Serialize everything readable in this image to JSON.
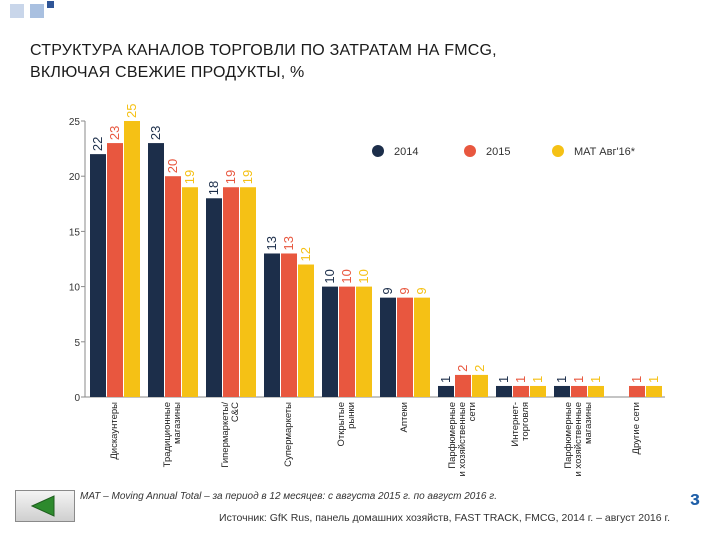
{
  "slide": {
    "title_line1": "СТРУКТУРА КАНАЛОВ ТОРГОВЛИ ПО ЗАТРАТАМ НА FMCG,",
    "title_line2": "ВКЛЮЧАЯ СВЕЖИЕ ПРОДУКТЫ, %",
    "footnote": "MAT – Moving Annual Total – за период в 12 месяцев: с августа 2015 г. по август 2016 г.",
    "source": "Источник: GfK Rus, панель домашних хозяйств, FAST TRACK, FMCG, 2014 г. – август 2016 г.",
    "corner_mark": "з",
    "nav_back_icon": "back-arrow-icon",
    "decor_colors": [
      "#c9d6ea",
      "#a9c0e0",
      "#2f5597"
    ]
  },
  "chart_data": {
    "type": "bar",
    "categories": [
      [
        "Дискаунтеры"
      ],
      [
        "Традиционные",
        "магазины"
      ],
      [
        "Гипермаркеты/",
        "C&C"
      ],
      [
        "Супермаркеты"
      ],
      [
        "Открытые",
        "рынки"
      ],
      [
        "Аптеки"
      ],
      [
        "Парфюмерные",
        "и хозяйственные",
        "сети"
      ],
      [
        "Интернет-",
        "торговля"
      ],
      [
        "Парфюмерные",
        "и хозяйственные",
        "магазины"
      ],
      [
        "Другие сети"
      ]
    ],
    "series": [
      {
        "name": "2014",
        "color": "#1c2e4a",
        "values": [
          22,
          23,
          18,
          13,
          10,
          9,
          1,
          1,
          1,
          null
        ]
      },
      {
        "name": "2015",
        "color": "#e8573f",
        "values": [
          23,
          20,
          19,
          13,
          10,
          9,
          2,
          1,
          1,
          1
        ]
      },
      {
        "name": "MAT Авг'16*",
        "color": "#f5c115",
        "values": [
          25,
          19,
          19,
          12,
          10,
          9,
          2,
          1,
          1,
          1
        ]
      }
    ],
    "y_ticks": [
      0,
      5,
      10,
      15,
      20,
      25
    ],
    "ylim": [
      0,
      25
    ],
    "grid": false,
    "legend_position": "top-right",
    "axis_color": "#8a8a8a"
  }
}
